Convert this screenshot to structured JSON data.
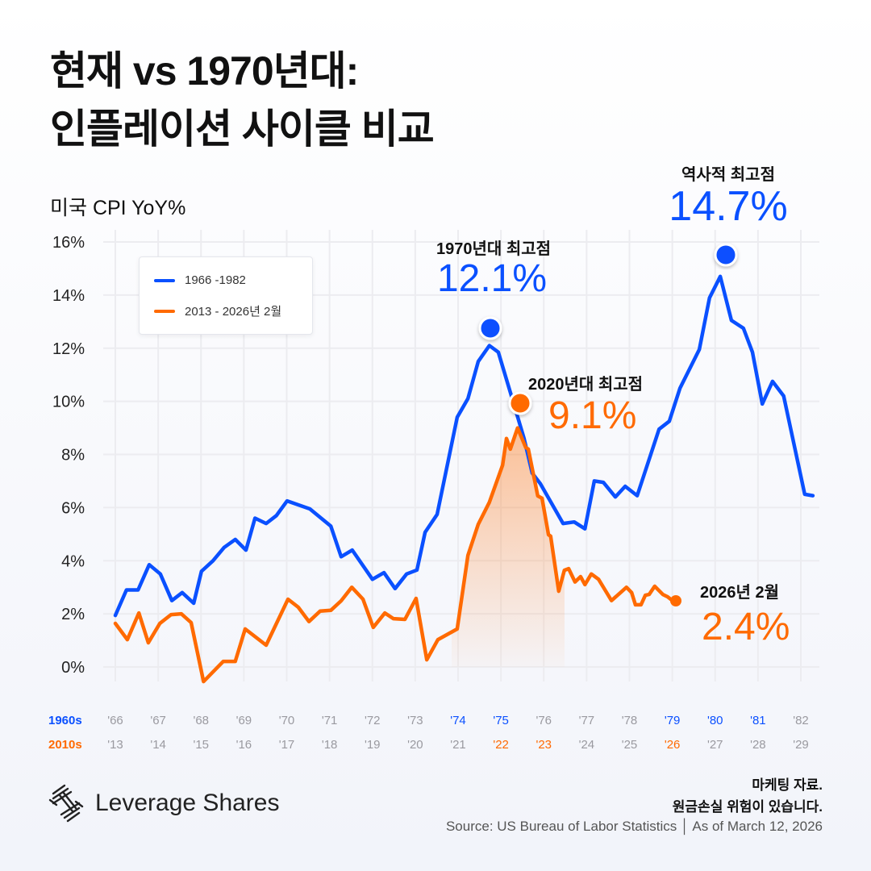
{
  "title": {
    "line1": "현재 vs 1970년대:",
    "line2": "인플레이션 사이클 비교"
  },
  "subtitle": "미국 CPI YoY%",
  "colors": {
    "blue": "#0a50ff",
    "orange": "#ff6a00",
    "grid": "#ececf0",
    "tick": "#9a9aa0"
  },
  "chart_data": {
    "type": "line",
    "ylabel": "미국 CPI YoY%",
    "ylim": [
      0,
      16
    ],
    "yticks": [
      "0%",
      "2%",
      "4%",
      "6%",
      "8%",
      "10%",
      "12%",
      "14%",
      "16%"
    ],
    "grid": true,
    "legend_placement": "top-left",
    "x_rows": [
      {
        "label": "1960s",
        "color": "#0a50ff",
        "ticks": [
          "'66",
          "'67",
          "'68",
          "'69",
          "'70",
          "'71",
          "'72",
          "'73",
          "'74",
          "'75",
          "'76",
          "'77",
          "'78",
          "'79",
          "'80",
          "'81",
          "'82"
        ],
        "highlighted": [
          "'74",
          "'75",
          "'79",
          "'80",
          "'81"
        ]
      },
      {
        "label": "2010s",
        "color": "#ff6a00",
        "ticks": [
          "'13",
          "'14",
          "'15",
          "'16",
          "'17",
          "'18",
          "'19",
          "'20",
          "'21",
          "'22",
          "'23",
          "'24",
          "'25",
          "'26",
          "'27",
          "'28",
          "'29"
        ],
        "highlighted": [
          "'22",
          "'23",
          "'26"
        ]
      }
    ],
    "series": [
      {
        "name": "1966 -1982",
        "color": "#0a50ff",
        "base_year": 1966,
        "x": [
          1966.0,
          1966.26,
          1966.53,
          1966.79,
          1967.05,
          1967.32,
          1967.56,
          1967.83,
          1968.01,
          1968.28,
          1968.54,
          1968.8,
          1969.05,
          1969.26,
          1969.52,
          1969.76,
          1970.01,
          1970.54,
          1971.03,
          1971.27,
          1971.53,
          1972.0,
          1972.27,
          1972.53,
          1972.8,
          1973.04,
          1973.23,
          1973.51,
          1973.98,
          1974.23,
          1974.47,
          1974.73,
          1974.94,
          1975.3,
          1975.54,
          1975.73,
          1975.92,
          1976.45,
          1976.71,
          1976.96,
          1977.18,
          1977.39,
          1977.67,
          1977.9,
          1978.18,
          1978.69,
          1978.93,
          1979.18,
          1979.63,
          1979.87,
          1980.12,
          1980.38,
          1980.66,
          1980.87,
          1981.1,
          1981.34,
          1981.6,
          1982.09,
          1982.28
        ],
        "y": [
          1.94,
          2.9,
          2.9,
          3.85,
          3.5,
          2.5,
          2.8,
          2.4,
          3.6,
          4.0,
          4.5,
          4.8,
          4.4,
          5.6,
          5.4,
          5.7,
          6.25,
          5.95,
          5.3,
          4.15,
          4.4,
          3.3,
          3.55,
          2.95,
          3.5,
          3.65,
          5.07,
          5.74,
          9.4,
          10.1,
          11.5,
          12.1,
          11.85,
          9.9,
          8.6,
          7.3,
          6.9,
          5.4,
          5.46,
          5.2,
          7.0,
          6.95,
          6.4,
          6.8,
          6.45,
          8.95,
          9.25,
          10.5,
          11.95,
          13.9,
          14.7,
          13.05,
          12.75,
          11.85,
          9.9,
          10.75,
          10.2,
          6.5,
          6.45
        ]
      },
      {
        "name": "2013 - 2026년 2월",
        "color": "#ff6a00",
        "base_year": 2013,
        "x": [
          2013.0,
          2013.28,
          2013.55,
          2013.77,
          2014.04,
          2014.3,
          2014.54,
          2014.77,
          2015.06,
          2015.52,
          2015.8,
          2016.03,
          2016.52,
          2017.03,
          2017.27,
          2017.52,
          2017.78,
          2018.03,
          2018.27,
          2018.52,
          2018.78,
          2019.02,
          2019.29,
          2019.49,
          2019.76,
          2020.02,
          2020.27,
          2020.53,
          2020.98,
          2021.23,
          2021.47,
          2021.73,
          2022.04,
          2022.13,
          2022.22,
          2022.39,
          2022.58,
          2022.64,
          2022.86,
          2022.96,
          2023.11,
          2023.16,
          2023.35,
          2023.48,
          2023.58,
          2023.73,
          2023.86,
          2023.96,
          2024.11,
          2024.28,
          2024.43,
          2024.58,
          2024.93,
          2025.05,
          2025.14,
          2025.27,
          2025.37,
          2025.46,
          2025.59,
          2025.78,
          2025.89,
          2026.08
        ],
        "y": [
          1.64,
          1.03,
          2.03,
          0.91,
          1.64,
          1.97,
          2.0,
          1.67,
          -0.55,
          0.21,
          0.21,
          1.43,
          0.82,
          2.55,
          2.25,
          1.71,
          2.1,
          2.13,
          2.49,
          3.0,
          2.55,
          1.49,
          2.03,
          1.82,
          1.79,
          2.58,
          0.27,
          1.03,
          1.43,
          4.2,
          5.37,
          6.2,
          7.6,
          8.6,
          8.2,
          9.0,
          8.26,
          8.2,
          6.44,
          6.35,
          4.98,
          4.92,
          2.85,
          3.64,
          3.7,
          3.2,
          3.4,
          3.1,
          3.5,
          3.3,
          2.9,
          2.5,
          3.0,
          2.8,
          2.34,
          2.34,
          2.7,
          2.73,
          3.04,
          2.73,
          2.64,
          2.4
        ]
      }
    ],
    "annotations": [
      {
        "label": "역사적 최고점",
        "value": "14.7%",
        "series": "1966 -1982",
        "x": 1980.12,
        "y": 14.7,
        "color": "#0a50ff"
      },
      {
        "label": "1970년대 최고점",
        "value": "12.1%",
        "series": "1966 -1982",
        "x": 1974.73,
        "y": 12.1,
        "color": "#0a50ff"
      },
      {
        "label": "2020년대 최고점",
        "value": "9.1%",
        "series": "2013 - 2026년 2월",
        "x": 2022.39,
        "y": 9.1,
        "color": "#ff6a00"
      },
      {
        "label": "2026년 2월",
        "value": "2.4%",
        "series": "2013 - 2026년 2월",
        "x": 2026.08,
        "y": 2.4,
        "color": "#ff6a00"
      }
    ]
  },
  "footer": {
    "brand": "Leverage Shares",
    "disclaimer_line1": "마케팅 자료.",
    "disclaimer_line2": "원금손실 위험이 있습니다.",
    "source": "Source: US Bureau of Labor Statistics │ As of March 12, 2026"
  }
}
